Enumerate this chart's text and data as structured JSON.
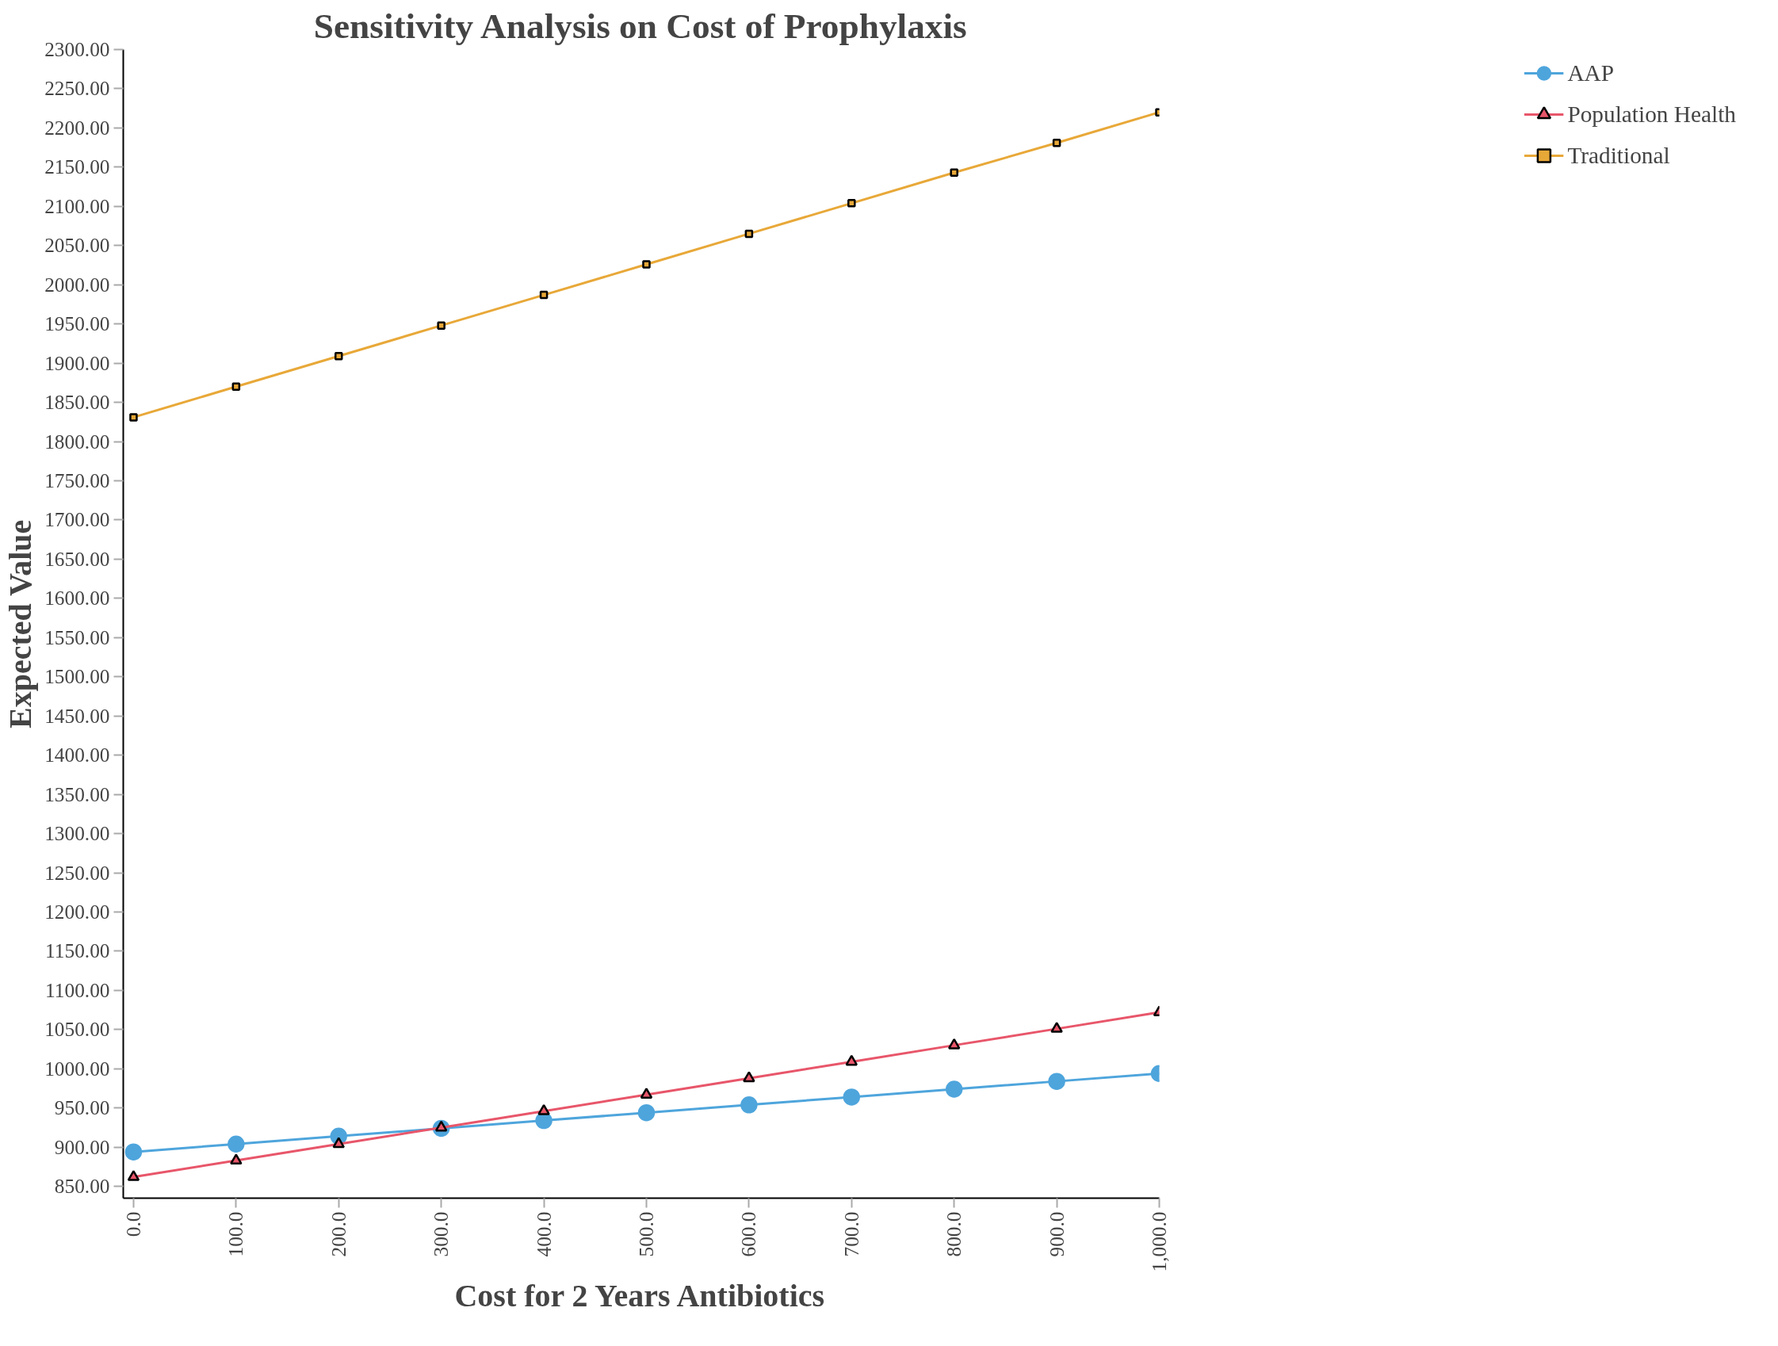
{
  "chart_data": {
    "type": "line",
    "title": "Sensitivity Analysis on Cost of Prophylaxis",
    "xlabel": "Cost for 2 Years Antibiotics",
    "ylabel": "Expected Value",
    "x": [
      0,
      100,
      200,
      300,
      400,
      500,
      600,
      700,
      800,
      900,
      1000
    ],
    "series": [
      {
        "name": "AAP",
        "color": "#4ea5dc",
        "marker": "circle",
        "values": [
          894,
          904,
          914,
          924,
          934,
          944,
          954,
          964,
          974,
          984,
          994
        ]
      },
      {
        "name": "Population Health",
        "color": "#e8566a",
        "marker": "triangle",
        "values": [
          862,
          883,
          904,
          925,
          946,
          967,
          988,
          1009,
          1030,
          1051,
          1072
        ]
      },
      {
        "name": "Traditional",
        "color": "#e8a838",
        "marker": "square",
        "values": [
          1831,
          1870,
          1909,
          1948,
          1987,
          2026,
          2065,
          2104,
          2143,
          2181,
          2220
        ]
      }
    ],
    "xlim": [
      -10,
      1000
    ],
    "ylim": [
      835,
      2300
    ],
    "xticks": [
      {
        "value": 0,
        "label": "0.0"
      },
      {
        "value": 100,
        "label": "100.0"
      },
      {
        "value": 200,
        "label": "200.0"
      },
      {
        "value": 300,
        "label": "300.0"
      },
      {
        "value": 400,
        "label": "400.0"
      },
      {
        "value": 500,
        "label": "500.0"
      },
      {
        "value": 600,
        "label": "600.0"
      },
      {
        "value": 700,
        "label": "700.0"
      },
      {
        "value": 800,
        "label": "800.0"
      },
      {
        "value": 900,
        "label": "900.0"
      },
      {
        "value": 1000,
        "label": "1,000.0"
      }
    ],
    "yticks": [
      {
        "value": 850,
        "label": "850.00"
      },
      {
        "value": 900,
        "label": "900.00"
      },
      {
        "value": 950,
        "label": "950.00"
      },
      {
        "value": 1000,
        "label": "1000.00"
      },
      {
        "value": 1050,
        "label": "1050.00"
      },
      {
        "value": 1100,
        "label": "1100.00"
      },
      {
        "value": 1150,
        "label": "1150.00"
      },
      {
        "value": 1200,
        "label": "1200.00"
      },
      {
        "value": 1250,
        "label": "1250.00"
      },
      {
        "value": 1300,
        "label": "1300.00"
      },
      {
        "value": 1350,
        "label": "1350.00"
      },
      {
        "value": 1400,
        "label": "1400.00"
      },
      {
        "value": 1450,
        "label": "1450.00"
      },
      {
        "value": 1500,
        "label": "1500.00"
      },
      {
        "value": 1550,
        "label": "1550.00"
      },
      {
        "value": 1600,
        "label": "1600.00"
      },
      {
        "value": 1650,
        "label": "1650.00"
      },
      {
        "value": 1700,
        "label": "1700.00"
      },
      {
        "value": 1750,
        "label": "1750.00"
      },
      {
        "value": 1800,
        "label": "1800.00"
      },
      {
        "value": 1850,
        "label": "1850.00"
      },
      {
        "value": 1900,
        "label": "1900.00"
      },
      {
        "value": 1950,
        "label": "1950.00"
      },
      {
        "value": 2000,
        "label": "2000.00"
      },
      {
        "value": 2050,
        "label": "2050.00"
      },
      {
        "value": 2100,
        "label": "2100.00"
      },
      {
        "value": 2150,
        "label": "2150.00"
      },
      {
        "value": 2200,
        "label": "2200.00"
      },
      {
        "value": 2250,
        "label": "2250.00"
      },
      {
        "value": 2300,
        "label": "2300.00"
      }
    ],
    "grid": false,
    "legend": "right"
  }
}
